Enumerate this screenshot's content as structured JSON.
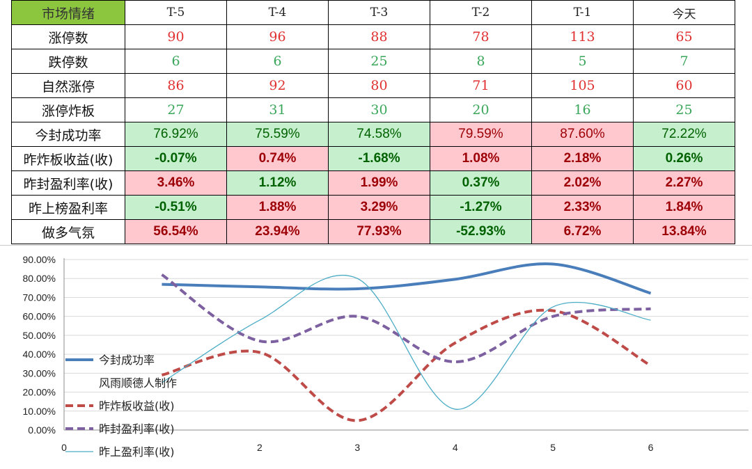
{
  "table": {
    "header_label": "市场情绪",
    "columns": [
      "T-5",
      "T-4",
      "T-3",
      "T-2",
      "T-1",
      "今天"
    ],
    "count_rows": [
      {
        "label": "涨停数",
        "color": "red",
        "values": [
          "90",
          "96",
          "88",
          "78",
          "113",
          "65"
        ]
      },
      {
        "label": "跌停数",
        "color": "green",
        "values": [
          "6",
          "6",
          "25",
          "8",
          "5",
          "7"
        ]
      },
      {
        "label": "自然涨停",
        "color": "red",
        "values": [
          "86",
          "92",
          "80",
          "71",
          "105",
          "60"
        ]
      },
      {
        "label": "涨停炸板",
        "color": "green",
        "values": [
          "27",
          "31",
          "30",
          "20",
          "16",
          "25"
        ]
      }
    ],
    "rate_rows": [
      {
        "label": "今封成功率",
        "bold": false,
        "cells": [
          {
            "v": "76.92%",
            "tone": "green"
          },
          {
            "v": "75.59%",
            "tone": "green"
          },
          {
            "v": "74.58%",
            "tone": "green"
          },
          {
            "v": "79.59%",
            "tone": "red"
          },
          {
            "v": "87.60%",
            "tone": "red"
          },
          {
            "v": "72.22%",
            "tone": "green"
          }
        ]
      },
      {
        "label": "昨炸板收益(收)",
        "bold": true,
        "cells": [
          {
            "v": "-0.07%",
            "tone": "green"
          },
          {
            "v": "0.74%",
            "tone": "red"
          },
          {
            "v": "-1.68%",
            "tone": "green"
          },
          {
            "v": "1.08%",
            "tone": "red"
          },
          {
            "v": "2.18%",
            "tone": "red"
          },
          {
            "v": "0.26%",
            "tone": "green"
          }
        ]
      },
      {
        "label": "昨封盈利率(收)",
        "bold": true,
        "cells": [
          {
            "v": "3.46%",
            "tone": "red"
          },
          {
            "v": "1.12%",
            "tone": "green"
          },
          {
            "v": "1.99%",
            "tone": "red"
          },
          {
            "v": "0.37%",
            "tone": "green"
          },
          {
            "v": "2.02%",
            "tone": "red"
          },
          {
            "v": "2.27%",
            "tone": "red"
          }
        ]
      },
      {
        "label": "昨上榜盈利率",
        "bold": true,
        "cells": [
          {
            "v": "-0.51%",
            "tone": "green"
          },
          {
            "v": "1.88%",
            "tone": "red"
          },
          {
            "v": "3.29%",
            "tone": "red"
          },
          {
            "v": "-1.27%",
            "tone": "green"
          },
          {
            "v": "2.33%",
            "tone": "red"
          },
          {
            "v": "1.84%",
            "tone": "red"
          }
        ]
      },
      {
        "label": "做多气氛",
        "bold": true,
        "cells": [
          {
            "v": "56.54%",
            "tone": "red"
          },
          {
            "v": "23.94%",
            "tone": "red"
          },
          {
            "v": "77.93%",
            "tone": "red"
          },
          {
            "v": "-52.93%",
            "tone": "green"
          },
          {
            "v": "6.72%",
            "tone": "red"
          },
          {
            "v": "13.84%",
            "tone": "red"
          }
        ]
      }
    ]
  },
  "colors": {
    "header_bg": "#8cc63f",
    "red_text": "#e03030",
    "green_text": "#3aa65a",
    "good_fill": "#c6efce",
    "good_text": "#006100",
    "bad_fill": "#ffc7ce",
    "bad_text": "#9c0006"
  },
  "chart_data": {
    "type": "line",
    "xlim": [
      0,
      7
    ],
    "x_tick_labels": [
      "0",
      "",
      "2",
      "3",
      "4",
      "5",
      "6"
    ],
    "ylim": [
      0,
      90
    ],
    "y_tick_labels": [
      "0.00%",
      "10.00%",
      "20.00%",
      "30.00%",
      "40.00%",
      "50.00%",
      "60.00%",
      "70.00%",
      "80.00%",
      "90.00%"
    ],
    "smoothed": true,
    "grid": "horizontal",
    "legend_position": "left",
    "legend_extra_text": "风雨顺德人制作",
    "series": [
      {
        "name": "今封成功率",
        "color": "#4a7ebb",
        "style": "solid-thick",
        "x": [
          1,
          2,
          3,
          4,
          5,
          6
        ],
        "y": [
          76.92,
          75.59,
          74.58,
          79.59,
          87.6,
          72.22
        ]
      },
      {
        "name": "昨炸板收益(收)",
        "color": "#be4b48",
        "style": "dashed",
        "x": [
          1,
          2,
          3,
          4,
          5,
          6
        ],
        "y": [
          29,
          41,
          5,
          46,
          63,
          34
        ]
      },
      {
        "name": "昨封盈利率(收)",
        "color": "#7d60a0",
        "style": "dashed",
        "x": [
          1,
          2,
          3,
          4,
          5,
          6
        ],
        "y": [
          82,
          47,
          60,
          36,
          60,
          64
        ]
      },
      {
        "name": "昨上盈利率(收)",
        "color": "#4bacc6",
        "style": "thin",
        "x": [
          1,
          2,
          3,
          4,
          5,
          6
        ],
        "y": [
          25,
          58,
          80,
          11,
          65,
          58
        ]
      }
    ]
  }
}
